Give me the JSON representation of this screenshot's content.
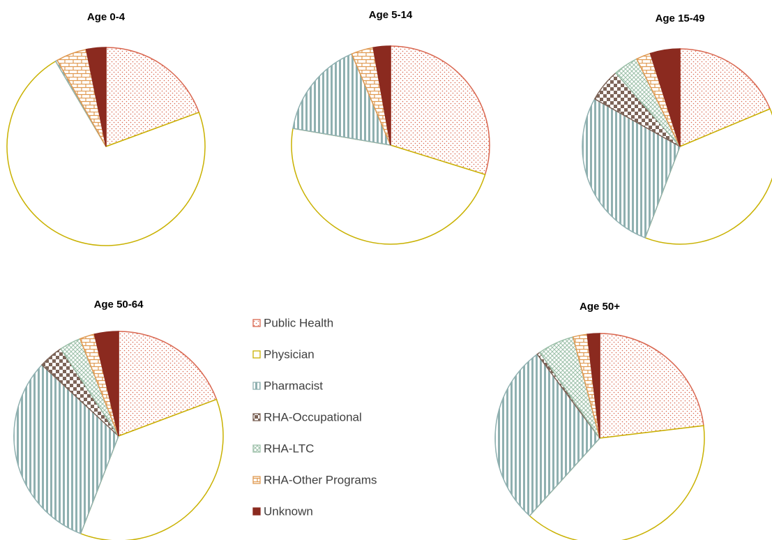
{
  "chart_data": [
    {
      "type": "pie",
      "title": "Age 0-4",
      "values": [
        19.4,
        72.1,
        0.3,
        0,
        0,
        5,
        3.2
      ]
    },
    {
      "type": "pie",
      "title": "Age 5-14",
      "values": [
        29.8,
        47.9,
        15.9,
        0,
        0,
        3.6,
        2.8
      ]
    },
    {
      "type": "pie",
      "title": "Age 15-49",
      "values": [
        18.7,
        37.1,
        27.3,
        5.5,
        4.1,
        2.4,
        4.9
      ]
    },
    {
      "type": "pie",
      "title": "Age 50-64",
      "values": [
        19.3,
        36.6,
        31,
        3.8,
        3.3,
        2.3,
        3.7
      ]
    },
    {
      "type": "pie",
      "title": "Age 50+",
      "values": [
        23.1,
        38.6,
        28.1,
        0.5,
        5.6,
        2.2,
        1.9
      ]
    }
  ],
  "legend": {
    "categories": [
      "Public Health",
      "Physician",
      "Pharmacist",
      "RHA-Occupational",
      "RHA-LTC",
      "RHA-Other Programs",
      "Unknown"
    ],
    "colors": [
      "#d9664f",
      "#c9b100",
      "#8fb0b0",
      "#7d6458",
      "#9bbfa8",
      "#e09a52",
      "#8b2a1f"
    ]
  }
}
